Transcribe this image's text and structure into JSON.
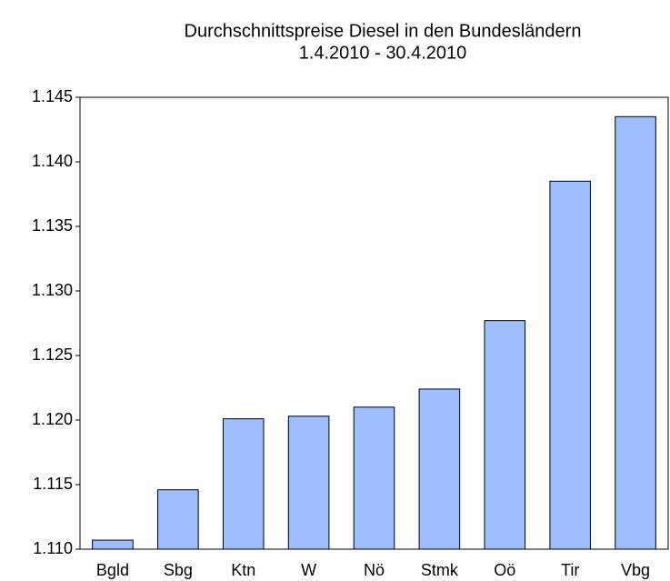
{
  "chart_data": {
    "type": "bar",
    "title": [
      "Durchschnittspreise Diesel in den Bundesländern",
      "1.4.2010 - 30.4.2010"
    ],
    "categories": [
      "Bgld",
      "Sbg",
      "Ktn",
      "W",
      "Nö",
      "Stmk",
      "Oö",
      "Tir",
      "Vbg"
    ],
    "values": [
      1.1107,
      1.1146,
      1.1201,
      1.1203,
      1.121,
      1.1224,
      1.1277,
      1.1385,
      1.1435
    ],
    "color": "#9dbdff",
    "ylim": [
      1.11,
      1.145
    ],
    "yticks": [
      {
        "value": 1.11,
        "label": "1.110"
      },
      1.115,
      {
        "value": 1.12,
        "label": "1.120"
      },
      1.125,
      {
        "value": 1.13,
        "label": "1.130"
      },
      1.135,
      {
        "value": 1.14,
        "label": "1.140"
      },
      1.145
    ],
    "grid": false
  }
}
